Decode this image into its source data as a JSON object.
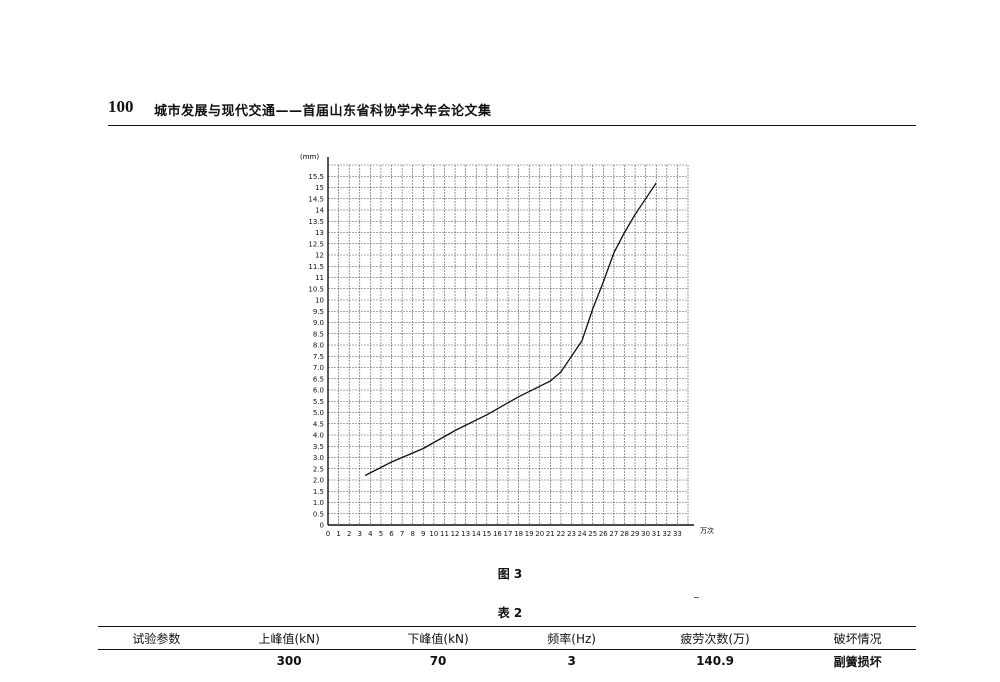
{
  "header": {
    "page_number": "100",
    "running_title": "城市发展与现代交通——首届山东省科协学术年会论文集"
  },
  "figure": {
    "caption": "图 3"
  },
  "chart_data": {
    "type": "line",
    "y_axis_label": "(mm)",
    "x_axis_label": "万次",
    "x_ticks": [
      "0",
      "1",
      "2",
      "3",
      "4",
      "5",
      "6",
      "7",
      "8",
      "9",
      "10",
      "11",
      "12",
      "13",
      "14",
      "15",
      "16",
      "17",
      "18",
      "19",
      "20",
      "21",
      "22",
      "23",
      "24",
      "25",
      "26",
      "27",
      "28",
      "29",
      "30",
      "31",
      "32",
      "33"
    ],
    "y_ticks": [
      "0",
      "0.5",
      "1.0",
      "1.5",
      "2.0",
      "2.5",
      "3.0",
      "3.5",
      "4.0",
      "4.5",
      "5.0",
      "5.5",
      "6.0",
      "6.5",
      "7.0",
      "7.5",
      "8.0",
      "8.5",
      "9.0",
      "9.5",
      "10",
      "10.5",
      "11",
      "11.5",
      "12",
      "12.5",
      "13",
      "13.5",
      "14",
      "14.5",
      "15",
      "15.5"
    ],
    "xlim": [
      0,
      34
    ],
    "ylim": [
      0,
      16
    ],
    "grid": true,
    "series": [
      {
        "points": [
          [
            3.5,
            2.2
          ],
          [
            6,
            2.8
          ],
          [
            9,
            3.4
          ],
          [
            12,
            4.2
          ],
          [
            15,
            4.9
          ],
          [
            18,
            5.7
          ],
          [
            21,
            6.4
          ],
          [
            22,
            6.8
          ],
          [
            23,
            7.5
          ],
          [
            24,
            8.2
          ],
          [
            25,
            9.6
          ],
          [
            26,
            10.8
          ],
          [
            27,
            12.1
          ],
          [
            28,
            13.0
          ],
          [
            29,
            13.8
          ],
          [
            30,
            14.5
          ],
          [
            31,
            15.2
          ]
        ]
      }
    ]
  },
  "table": {
    "caption": "表 2",
    "columns": [
      "试验参数",
      "上峰值(kN)",
      "下峰值(kN)",
      "频率(Hz)",
      "疲劳次数(万)",
      "破坏情况"
    ],
    "rows": [
      [
        "",
        "300",
        "70",
        "3",
        "140.9",
        "副簧损坏"
      ]
    ]
  }
}
